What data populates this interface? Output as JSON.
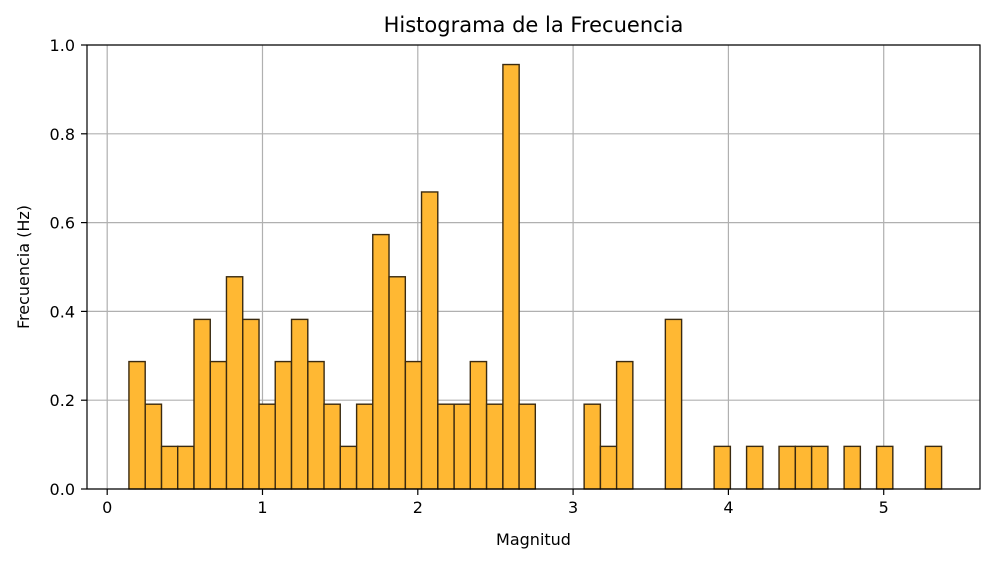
{
  "chart_data": {
    "type": "bar",
    "title": "Histograma de la Frecuencia",
    "xlabel": "Magnitud",
    "ylabel": "Frecuencia (Hz)",
    "xlim": [
      -0.13,
      5.62
    ],
    "ylim": [
      0,
      1.0
    ],
    "grid": true,
    "bar_color": "#FFB833",
    "bar_edge_color": "#3a2a10",
    "bin_width": 0.1047,
    "xticks": [
      0,
      1,
      2,
      3,
      4,
      5
    ],
    "xtick_labels": [
      "0",
      "1",
      "2",
      "3",
      "4",
      "5"
    ],
    "yticks": [
      0.0,
      0.2,
      0.4,
      0.6,
      0.8,
      1.0
    ],
    "ytick_labels": [
      "0.0",
      "0.2",
      "0.4",
      "0.6",
      "0.8",
      "1.0"
    ],
    "bins": [
      {
        "x": 0.14,
        "value": 0.287
      },
      {
        "x": 0.245,
        "value": 0.191
      },
      {
        "x": 0.35,
        "value": 0.096
      },
      {
        "x": 0.454,
        "value": 0.096
      },
      {
        "x": 0.559,
        "value": 0.382
      },
      {
        "x": 0.664,
        "value": 0.287
      },
      {
        "x": 0.768,
        "value": 0.478
      },
      {
        "x": 0.873,
        "value": 0.382
      },
      {
        "x": 0.978,
        "value": 0.191
      },
      {
        "x": 1.082,
        "value": 0.287
      },
      {
        "x": 1.187,
        "value": 0.382
      },
      {
        "x": 1.292,
        "value": 0.287
      },
      {
        "x": 1.396,
        "value": 0.191
      },
      {
        "x": 1.501,
        "value": 0.096
      },
      {
        "x": 1.606,
        "value": 0.191
      },
      {
        "x": 1.71,
        "value": 0.573
      },
      {
        "x": 1.815,
        "value": 0.478
      },
      {
        "x": 1.92,
        "value": 0.287
      },
      {
        "x": 2.024,
        "value": 0.669
      },
      {
        "x": 2.129,
        "value": 0.191
      },
      {
        "x": 2.234,
        "value": 0.191
      },
      {
        "x": 2.338,
        "value": 0.287
      },
      {
        "x": 2.443,
        "value": 0.191
      },
      {
        "x": 2.548,
        "value": 0.956
      },
      {
        "x": 2.652,
        "value": 0.191
      },
      {
        "x": 3.071,
        "value": 0.191
      },
      {
        "x": 3.176,
        "value": 0.096
      },
      {
        "x": 3.28,
        "value": 0.287
      },
      {
        "x": 3.594,
        "value": 0.382
      },
      {
        "x": 3.908,
        "value": 0.096
      },
      {
        "x": 4.117,
        "value": 0.096
      },
      {
        "x": 4.326,
        "value": 0.096
      },
      {
        "x": 4.431,
        "value": 0.096
      },
      {
        "x": 4.536,
        "value": 0.096
      },
      {
        "x": 4.745,
        "value": 0.096
      },
      {
        "x": 4.954,
        "value": 0.096
      },
      {
        "x": 5.268,
        "value": 0.096
      }
    ]
  }
}
